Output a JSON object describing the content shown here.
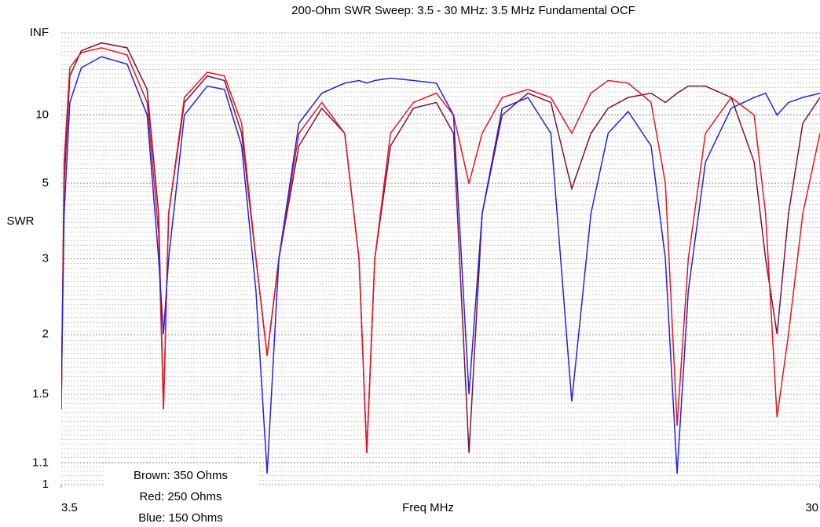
{
  "chart_data": {
    "type": "line",
    "title": "200-Ohm SWR Sweep: 3.5 - 30 MHz: 3.5 MHz Fundamental OCF",
    "y_label": "SWR",
    "x_label": "Freq MHz",
    "y_scale": "reflection",
    "xlim": [
      3.5,
      30
    ],
    "xticks": [
      3.5,
      30
    ],
    "ylim": [
      1,
      {
        "value": "Infinity",
        "label": "INF"
      }
    ],
    "yticks": [
      1,
      1.1,
      1.5,
      2,
      3,
      5,
      10,
      {
        "value": "Infinity",
        "label": "INF"
      }
    ],
    "grid": true,
    "legend": "bottom-left",
    "x": [
      3.5,
      3.6,
      3.8,
      4.2,
      4.9,
      5.8,
      6.5,
      6.9,
      7.07,
      7.25,
      7.8,
      8.6,
      9.2,
      9.8,
      10.3,
      10.69,
      11.1,
      11.8,
      12.6,
      13.4,
      13.9,
      14.17,
      14.45,
      15.0,
      15.8,
      16.6,
      17.2,
      17.74,
      18.2,
      18.9,
      19.8,
      20.6,
      21.33,
      22.0,
      22.6,
      23.3,
      24.1,
      24.6,
      25.01,
      25.4,
      26.0,
      26.9,
      27.7,
      28.1,
      28.5,
      28.9,
      29.4,
      30
    ],
    "series": [
      {
        "name": "Brown: 350 Ohms",
        "color": "#80103c",
        "values": [
          1.4,
          5,
          20,
          50,
          90,
          60,
          15,
          4,
          1.4,
          4,
          12,
          20,
          18,
          8,
          3,
          1.8,
          3,
          7,
          11,
          8,
          3,
          1.15,
          3,
          7,
          11,
          12,
          8,
          1.15,
          4,
          10,
          14,
          12,
          4.8,
          8,
          11,
          13,
          14,
          12,
          14,
          16,
          16,
          13,
          6,
          3,
          2.0,
          4,
          9,
          13
        ]
      },
      {
        "name": "Red: 250 Ohms",
        "color": "#e8141c",
        "values": [
          1.4,
          6,
          25,
          45,
          60,
          40,
          12,
          3.5,
          1.4,
          4,
          13,
          22,
          20,
          9,
          3,
          1.8,
          3,
          8,
          12,
          8,
          3,
          1.15,
          3,
          8,
          12,
          14,
          10,
          5,
          8,
          13,
          15,
          13,
          8,
          14,
          18,
          17,
          12,
          5,
          1.3,
          3,
          8,
          13,
          10,
          4,
          1.35,
          2,
          4,
          8
        ]
      },
      {
        "name": "Blue: 150 Ohms",
        "color": "#2222e0",
        "values": [
          1.5,
          4,
          12,
          25,
          37,
          28,
          10,
          3,
          2.0,
          3,
          10,
          16,
          15,
          7,
          2.5,
          1.05,
          3,
          9,
          14,
          17,
          18,
          17,
          18,
          19,
          18,
          17,
          10,
          1.5,
          4,
          11,
          13,
          8,
          1.45,
          4,
          8,
          10.5,
          7,
          3,
          1.05,
          2.5,
          6,
          11,
          13,
          14,
          10,
          12,
          13,
          14
        ]
      }
    ]
  }
}
